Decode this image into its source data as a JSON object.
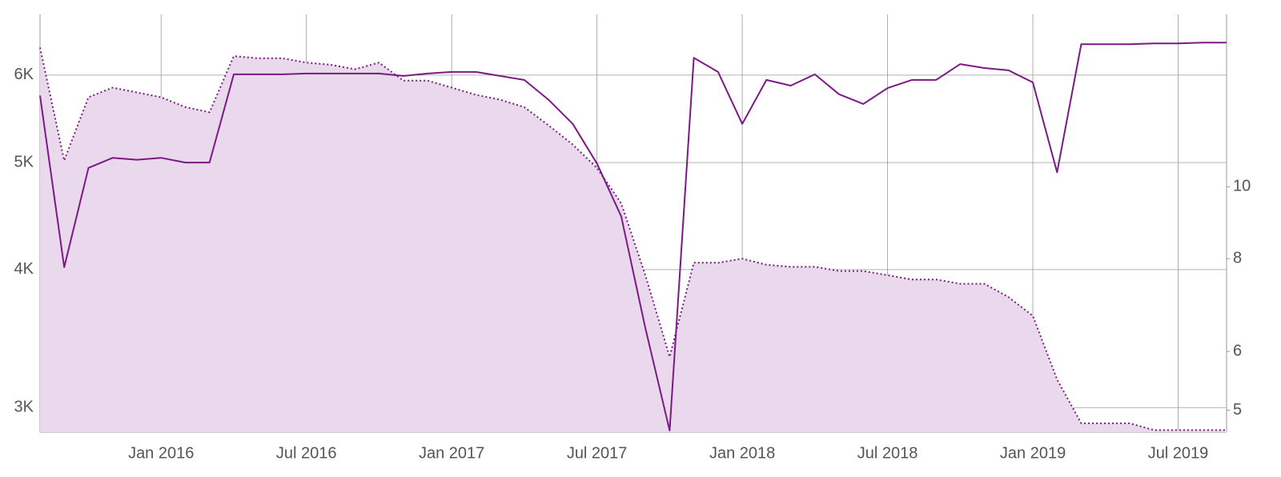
{
  "chart_data": {
    "type": "line",
    "x": [
      "2015-08",
      "2015-09",
      "2015-10",
      "2015-11",
      "2015-12",
      "2016-01",
      "2016-02",
      "2016-03",
      "2016-04",
      "2016-05",
      "2016-06",
      "2016-07",
      "2016-08",
      "2016-09",
      "2016-10",
      "2016-11",
      "2016-12",
      "2017-01",
      "2017-02",
      "2017-03",
      "2017-04",
      "2017-05",
      "2017-06",
      "2017-07",
      "2017-08",
      "2017-09",
      "2017-10",
      "2017-11",
      "2017-12",
      "2018-01",
      "2018-02",
      "2018-03",
      "2018-04",
      "2018-05",
      "2018-06",
      "2018-07",
      "2018-08",
      "2018-09",
      "2018-10",
      "2018-11",
      "2018-12",
      "2019-01",
      "2019-02",
      "2019-03",
      "2019-04",
      "2019-05",
      "2019-06",
      "2019-07",
      "2019-08",
      "2019-09"
    ],
    "series": [
      {
        "color": "#7b1a85",
        "style": "solid",
        "axis": "y",
        "values": [
          5750,
          4020,
          4945,
          5050,
          5030,
          5050,
          5000,
          5000,
          6010,
          6010,
          6010,
          6020,
          6020,
          6020,
          6020,
          5990,
          6020,
          6040,
          6040,
          5990,
          5940,
          5700,
          5420,
          4990,
          4470,
          3540,
          2860,
          6220,
          6040,
          5420,
          5940,
          5870,
          6010,
          5765,
          5650,
          5840,
          5940,
          5940,
          6140,
          6090,
          6060,
          5910,
          4900,
          6400,
          6400,
          6400,
          6410,
          6410,
          6420,
          6420
        ]
      },
      {
        "color": "#7b1a85",
        "style": "dotted",
        "fill": "#ead8ec",
        "area": true,
        "axis": "y2",
        "values": [
          15.4,
          10.85,
          13.2,
          13.6,
          13.4,
          13.2,
          12.8,
          12.6,
          15.0,
          14.9,
          14.9,
          14.7,
          14.6,
          14.4,
          14.7,
          13.9,
          13.9,
          13.6,
          13.3,
          13.1,
          12.8,
          12.1,
          11.4,
          10.6,
          9.5,
          7.6,
          5.9,
          7.9,
          7.9,
          8.0,
          7.85,
          7.8,
          7.8,
          7.7,
          7.7,
          7.6,
          7.5,
          7.5,
          7.4,
          7.4,
          7.1,
          6.7,
          5.5,
          4.8,
          4.8,
          4.8,
          4.7,
          4.7,
          4.7,
          4.7
        ]
      }
    ],
    "xlim": [
      "2015-08",
      "2019-09"
    ],
    "xticks": [
      {
        "value": "2016-01",
        "label": "Jan 2016"
      },
      {
        "value": "2016-07",
        "label": "Jul 2016"
      },
      {
        "value": "2017-01",
        "label": "Jan 2017"
      },
      {
        "value": "2017-07",
        "label": "Jul 2017"
      },
      {
        "value": "2018-01",
        "label": "Jan 2018"
      },
      {
        "value": "2018-07",
        "label": "Jul 2018"
      },
      {
        "value": "2019-01",
        "label": "Jan 2019"
      },
      {
        "value": "2019-07",
        "label": "Jul 2019"
      }
    ],
    "ylim": [
      2850,
      6810
    ],
    "yticks": [
      {
        "value": 3000,
        "label": "3K"
      },
      {
        "value": 4000,
        "label": "4K"
      },
      {
        "value": 5000,
        "label": "5K"
      },
      {
        "value": 6000,
        "label": "6K"
      }
    ],
    "y2lim": [
      4.67,
      17.07
    ],
    "y2ticks": [
      5,
      6,
      8,
      10
    ],
    "log_scale": true,
    "grid": true
  }
}
